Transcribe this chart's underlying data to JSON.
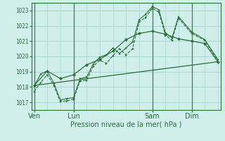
{
  "bg_color": "#d0eeea",
  "grid_color": "#a8d8d0",
  "line_color": "#2a6e3a",
  "xlabel": "Pression niveau de la mer( hPa )",
  "ylim": [
    1016.5,
    1023.5
  ],
  "yticks": [
    1017,
    1018,
    1019,
    1020,
    1021,
    1022,
    1023
  ],
  "xtick_labels": [
    "Ven",
    "Lun",
    "Sam",
    "Dim"
  ],
  "xtick_positions": [
    0,
    30,
    90,
    120
  ],
  "vline_positions": [
    0,
    30,
    90,
    120
  ],
  "xmax": 140,
  "line1_x": [
    0,
    5,
    10,
    15,
    20,
    25,
    30,
    35,
    40,
    45,
    50,
    55,
    60,
    65,
    70,
    75,
    80,
    85,
    90,
    95,
    100,
    105,
    110,
    120,
    130,
    140
  ],
  "line1_y": [
    1017.7,
    1018.3,
    1018.8,
    1018.1,
    1017.05,
    1017.1,
    1017.2,
    1018.4,
    1018.45,
    1019.35,
    1019.75,
    1019.55,
    1020.05,
    1020.5,
    1020.1,
    1020.5,
    1022.25,
    1022.55,
    1023.15,
    1022.9,
    1021.4,
    1021.05,
    1022.5,
    1021.5,
    1021.05,
    1019.7
  ],
  "line2_x": [
    0,
    5,
    10,
    15,
    20,
    25,
    30,
    35,
    40,
    45,
    50,
    55,
    60,
    65,
    70,
    75,
    80,
    85,
    90,
    95,
    100,
    105,
    110,
    120,
    130,
    140
  ],
  "line2_y": [
    1018.05,
    1018.85,
    1019.05,
    1018.25,
    1017.15,
    1017.25,
    1017.3,
    1018.55,
    1018.65,
    1019.5,
    1019.95,
    1020.1,
    1020.55,
    1020.2,
    1020.55,
    1020.95,
    1022.4,
    1022.75,
    1023.25,
    1023.05,
    1021.55,
    1021.2,
    1022.6,
    1021.6,
    1021.1,
    1019.8
  ],
  "line3_x": [
    0,
    10,
    20,
    30,
    40,
    50,
    60,
    70,
    80,
    90,
    100,
    110,
    120,
    130,
    140
  ],
  "line3_y": [
    1018.1,
    1019.05,
    1018.55,
    1018.8,
    1019.45,
    1019.8,
    1020.35,
    1021.1,
    1021.5,
    1021.65,
    1021.45,
    1021.15,
    1021.0,
    1020.85,
    1019.65
  ],
  "line4_x": [
    0,
    140
  ],
  "line4_y": [
    1018.1,
    1019.65
  ]
}
